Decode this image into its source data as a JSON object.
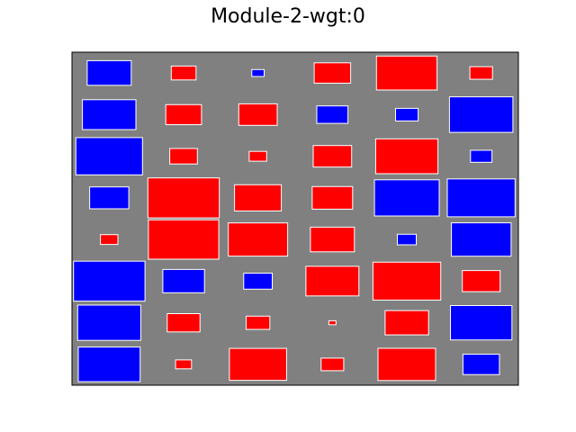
{
  "chart_data": {
    "type": "heatmap",
    "title": "Module-2-wgt:0",
    "rows": 8,
    "cols": 6,
    "value_range": [
      -1,
      1
    ],
    "values": [
      [
        -0.38,
        0.12,
        -0.03,
        0.26,
        0.72,
        0.1
      ],
      [
        -0.56,
        0.25,
        0.29,
        -0.19,
        -0.1,
        -0.79
      ],
      [
        -0.87,
        0.15,
        0.06,
        0.29,
        0.76,
        -0.09
      ],
      [
        -0.3,
        1.0,
        0.43,
        0.32,
        -0.82,
        -0.9
      ],
      [
        0.06,
        0.97,
        0.69,
        0.38,
        -0.07,
        -0.7
      ],
      [
        -1.0,
        -0.34,
        -0.16,
        0.55,
        0.9,
        0.28
      ],
      [
        -0.78,
        0.21,
        0.11,
        0.01,
        0.37,
        -0.74
      ],
      [
        -0.75,
        0.05,
        0.64,
        0.1,
        0.65,
        -0.26
      ]
    ],
    "positive_color": "#ff0000",
    "negative_color": "#0000ff",
    "background_color": "#808080",
    "edge_color": "#ffffff",
    "grid": false,
    "axes_ticks": false
  }
}
